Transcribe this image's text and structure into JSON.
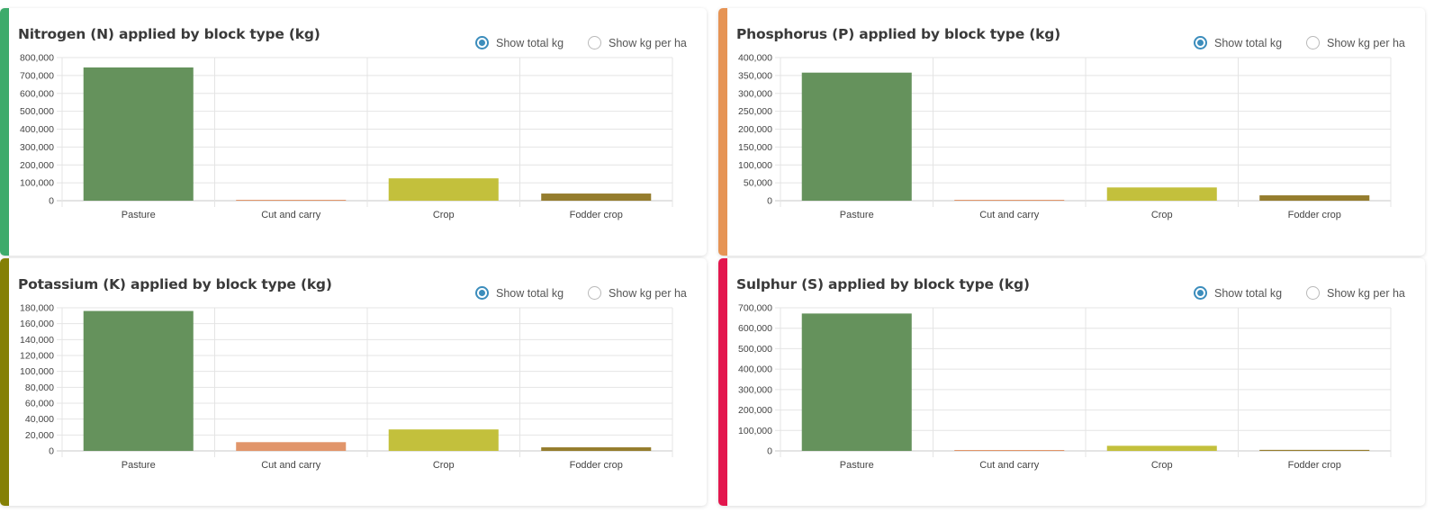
{
  "cards": [
    {
      "accent": "#3dab6b",
      "toggle": {
        "total_label": "Show total kg",
        "perha_label": "Show kg per ha",
        "selected": "total"
      },
      "chart_data": {
        "type": "bar",
        "title": "Nitrogen (N) applied by block type (kg)",
        "categories": [
          "Pasture",
          "Cut and carry",
          "Crop",
          "Fodder crop"
        ],
        "values": [
          745000,
          3000,
          125000,
          40000
        ],
        "colors": [
          "#65925c",
          "#e1956a",
          "#c3c03c",
          "#957d2e"
        ],
        "ylim": [
          0,
          800000
        ],
        "yticks": [
          "0",
          "100,000",
          "200,000",
          "300,000",
          "400,000",
          "500,000",
          "600,000",
          "700,000",
          "800,000"
        ],
        "grid": true
      }
    },
    {
      "accent": "#e69455",
      "toggle": {
        "total_label": "Show total kg",
        "perha_label": "Show kg per ha",
        "selected": "total"
      },
      "chart_data": {
        "type": "bar",
        "title": "Phosphorus (P) applied by block type (kg)",
        "categories": [
          "Pasture",
          "Cut and carry",
          "Crop",
          "Fodder crop"
        ],
        "values": [
          358000,
          2000,
          37000,
          15000
        ],
        "colors": [
          "#65925c",
          "#e1956a",
          "#c3c03c",
          "#957d2e"
        ],
        "ylim": [
          0,
          400000
        ],
        "yticks": [
          "0",
          "50,000",
          "100,000",
          "150,000",
          "200,000",
          "250,000",
          "300,000",
          "350,000",
          "400,000"
        ],
        "grid": true
      }
    },
    {
      "accent": "#848006",
      "toggle": {
        "total_label": "Show total kg",
        "perha_label": "Show kg per ha",
        "selected": "total"
      },
      "chart_data": {
        "type": "bar",
        "title": "Potassium (K) applied by block type (kg)",
        "categories": [
          "Pasture",
          "Cut and carry",
          "Crop",
          "Fodder crop"
        ],
        "values": [
          176000,
          11000,
          27000,
          4500
        ],
        "colors": [
          "#65925c",
          "#e1956a",
          "#c3c03c",
          "#957d2e"
        ],
        "ylim": [
          0,
          180000
        ],
        "yticks": [
          "0",
          "20,000",
          "40,000",
          "60,000",
          "80,000",
          "100,000",
          "120,000",
          "140,000",
          "160,000",
          "180,000"
        ],
        "grid": true
      }
    },
    {
      "accent": "#e3174e",
      "toggle": {
        "total_label": "Show total kg",
        "perha_label": "Show kg per ha",
        "selected": "total"
      },
      "chart_data": {
        "type": "bar",
        "title": "Sulphur (S) applied by block type (kg)",
        "categories": [
          "Pasture",
          "Cut and carry",
          "Crop",
          "Fodder crop"
        ],
        "values": [
          672000,
          2000,
          25000,
          5000
        ],
        "colors": [
          "#65925c",
          "#e1956a",
          "#c3c03c",
          "#957d2e"
        ],
        "ylim": [
          0,
          700000
        ],
        "yticks": [
          "0",
          "100,000",
          "200,000",
          "300,000",
          "400,000",
          "500,000",
          "600,000",
          "700,000"
        ],
        "grid": true
      }
    }
  ]
}
